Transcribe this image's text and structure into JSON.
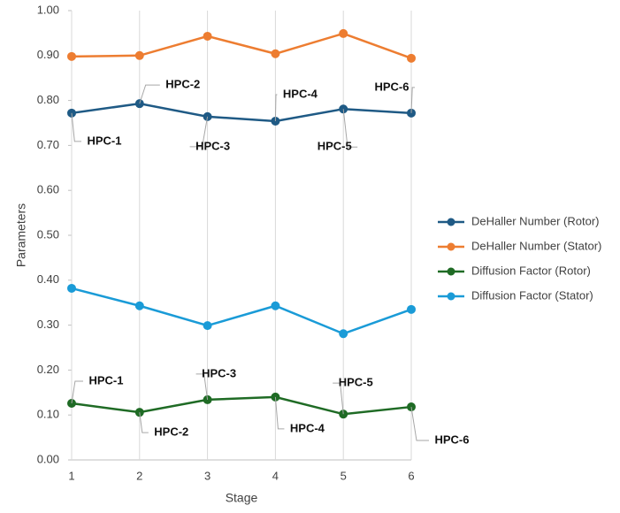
{
  "chart_data": {
    "type": "line",
    "x_label": "Stage",
    "y_label": "Parameters",
    "x": [
      1,
      2,
      3,
      4,
      5,
      6
    ],
    "xlim": [
      1,
      6
    ],
    "xticks": [
      1,
      2,
      3,
      4,
      5,
      6
    ],
    "ylim": [
      0,
      1
    ],
    "yticks": [
      {
        "value": 0,
        "label": "0.00"
      },
      {
        "value": 0.1,
        "label": "0.10"
      },
      {
        "value": 0.2,
        "label": "0.20"
      },
      {
        "value": 0.3,
        "label": "0.30"
      },
      {
        "value": 0.4,
        "label": "0.40"
      },
      {
        "value": 0.5,
        "label": "0.50"
      },
      {
        "value": 0.6,
        "label": "0.60"
      },
      {
        "value": 0.7,
        "label": "0.70"
      },
      {
        "value": 0.8,
        "label": "0.80"
      },
      {
        "value": 0.9,
        "label": "0.90"
      },
      {
        "value": 1,
        "label": "1.00"
      }
    ],
    "grid": "x",
    "legend": "right",
    "series": [
      {
        "name": "DeHaller Number (Rotor)",
        "color": "#1f5a85",
        "values": [
          0.772,
          0.793,
          0.764,
          0.754,
          0.781,
          0.772
        ],
        "labels": [
          "HPC-1",
          "HPC-2",
          "HPC-3",
          "HPC-4",
          "HPC-5",
          "HPC-6"
        ]
      },
      {
        "name": "DeHaller Number (Stator)",
        "color": "#ed7d31",
        "values": [
          0.898,
          0.9,
          0.943,
          0.904,
          0.949,
          0.894
        ]
      },
      {
        "name": "Diffusion Factor (Rotor)",
        "color": "#1f6b25",
        "values": [
          0.126,
          0.106,
          0.134,
          0.14,
          0.102,
          0.118
        ],
        "labels": [
          "HPC-1",
          "HPC-2",
          "HPC-3",
          "HPC-4",
          "HPC-5",
          "HPC-6"
        ]
      },
      {
        "name": "Diffusion Factor (Stator)",
        "color": "#1a9bd7",
        "values": [
          0.382,
          0.343,
          0.299,
          0.343,
          0.281,
          0.335
        ]
      }
    ]
  }
}
